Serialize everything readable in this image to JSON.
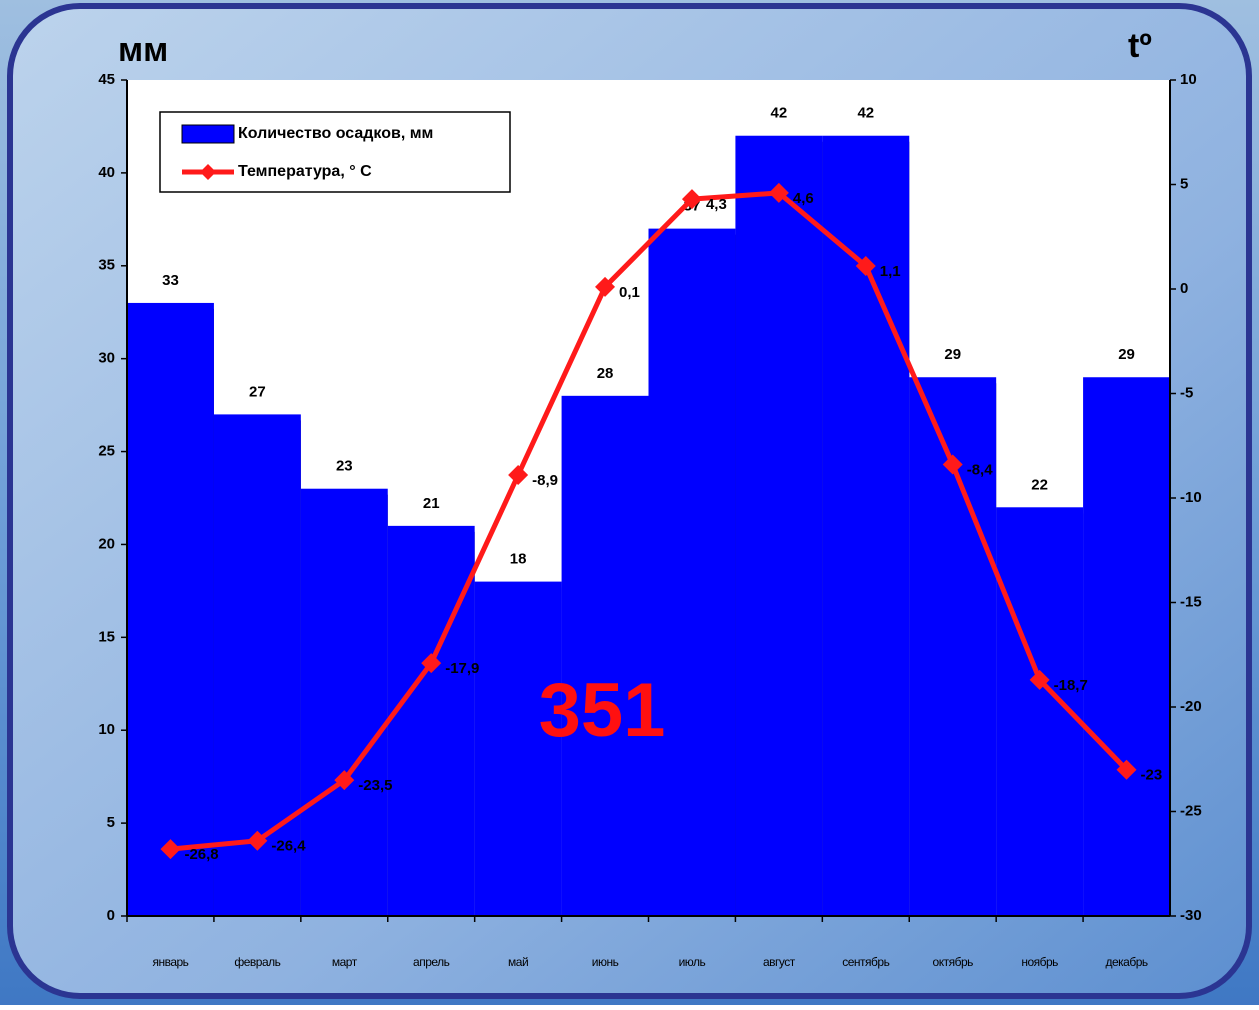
{
  "chart_data": {
    "type": "bar",
    "categories": [
      "январь",
      "февраль",
      "март",
      "апрель",
      "май",
      "июнь",
      "июль",
      "август",
      "сентябрь",
      "октябрь",
      "ноябрь",
      "декабрь"
    ],
    "series": [
      {
        "name": "Количество осадков, мм",
        "color": "#0000ff",
        "type": "bar",
        "values": [
          33,
          27,
          23,
          21,
          18,
          28,
          37,
          42,
          42,
          29,
          22,
          29
        ]
      },
      {
        "name": "Температура, ° С",
        "color": "#ff1a1a",
        "type": "line",
        "axis": "y2",
        "values": [
          -26.8,
          -26.4,
          -23.5,
          -17.9,
          -8.9,
          0.1,
          4.3,
          4.6,
          1.1,
          -8.4,
          -18.7,
          -23
        ],
        "value_labels": [
          "-26,8",
          "-26,4",
          "-23,5",
          "-17,9",
          "-8,9",
          "0,1",
          "4,3",
          "4,6",
          "1,1",
          "-8,4",
          "-18,7",
          "-23"
        ]
      }
    ],
    "y_label": "мм",
    "y2_label": "tº",
    "annotation": "351",
    "ylim": [
      0,
      45
    ],
    "yticks": [
      0,
      5,
      10,
      15,
      20,
      25,
      30,
      35,
      40,
      45
    ],
    "y2lim": [
      -30,
      10
    ],
    "y2ticks": [
      -30,
      -25,
      -20,
      -15,
      -10,
      -5,
      0,
      5,
      10
    ],
    "legend": "upper left"
  }
}
